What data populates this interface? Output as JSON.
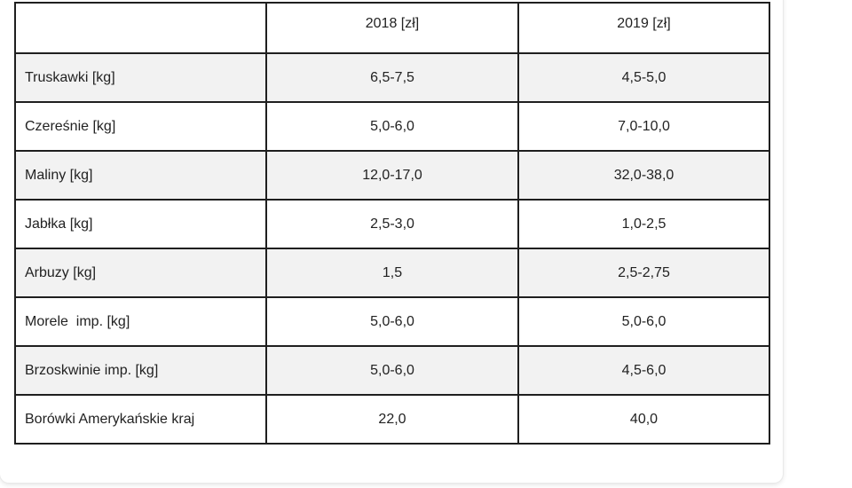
{
  "table": {
    "headers": [
      "",
      "2018 [zł]",
      "2019 [zł]"
    ],
    "rows": [
      {
        "label": "Truskawki [kg]",
        "y2018": "6,5-7,5",
        "y2019": "4,5-5,0"
      },
      {
        "label": "Czereśnie [kg]",
        "y2018": "5,0-6,0",
        "y2019": "7,0-10,0"
      },
      {
        "label": "Maliny [kg]",
        "y2018": "12,0-17,0",
        "y2019": "32,0-38,0"
      },
      {
        "label": "Jabłka [kg]",
        "y2018": "2,5-3,0",
        "y2019": "1,0-2,5"
      },
      {
        "label": "Arbuzy [kg]",
        "y2018": "1,5",
        "y2019": "2,5-2,75"
      },
      {
        "label": "Morele  imp. [kg]",
        "y2018": "5,0-6,0",
        "y2019": "5,0-6,0"
      },
      {
        "label": "Brzoskwinie imp. [kg]",
        "y2018": "5,0-6,0",
        "y2019": "4,5-6,0"
      },
      {
        "label": "Borówki Amerykańskie kraj",
        "y2018": "22,0",
        "y2019": "40,0"
      }
    ]
  }
}
